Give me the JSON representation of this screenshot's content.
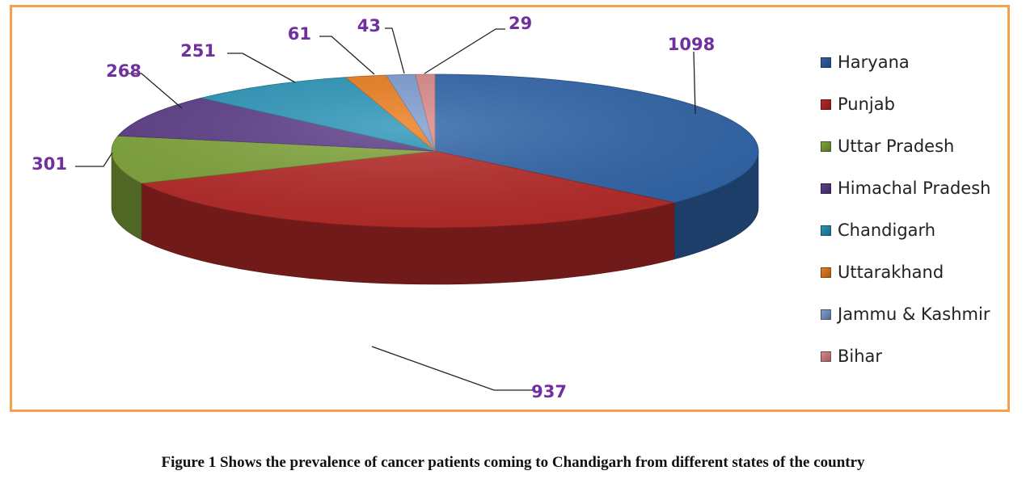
{
  "chart_data": {
    "type": "pie",
    "categories": [
      "Haryana",
      "Punjab",
      "Uttar Pradesh",
      "Himachal Pradesh",
      "Chandigarh",
      "Uttarakhand",
      "Jammu & Kashmir",
      "Bihar"
    ],
    "values": [
      1098,
      937,
      301,
      268,
      251,
      61,
      43,
      29
    ],
    "colors": [
      "#2f64a8",
      "#b52a28",
      "#7fa43a",
      "#5b3c87",
      "#2a95b8",
      "#ec7d1e",
      "#7d9dd0",
      "#d98888"
    ],
    "data_labels": [
      "1098",
      "937",
      "301",
      "268",
      "251",
      "61",
      "43",
      "29"
    ],
    "label_color": "#7030a0",
    "legend_placement": "right",
    "three_d": true
  },
  "caption": "Figure 1 Shows the prevalence of cancer patients coming to Chandigarh from different states of the country"
}
